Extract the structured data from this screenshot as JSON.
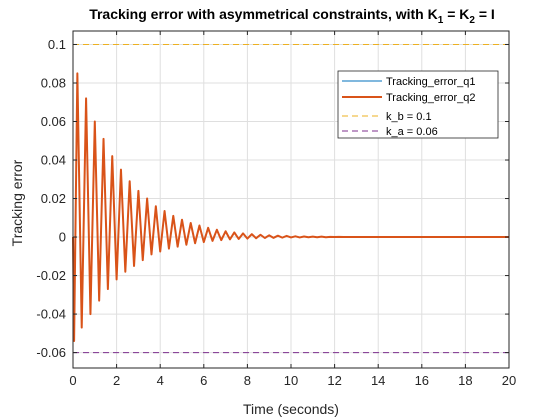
{
  "chart_data": {
    "type": "line",
    "title": "Tracking error with asymmetrical constraints, with K",
    "title_sub1": "1",
    "title_mid": " = K",
    "title_sub2": "2",
    "title_end": " =  I",
    "xlabel": "Time (seconds)",
    "ylabel": "Tracking error",
    "xlim": [
      0,
      20
    ],
    "ylim": [
      -0.068,
      0.107
    ],
    "grid": true,
    "legend_position": "top-right",
    "x_ticks": [
      0,
      2,
      4,
      6,
      8,
      10,
      12,
      14,
      16,
      18,
      20
    ],
    "x_tick_labels": [
      "0",
      "2",
      "4",
      "6",
      "8",
      "10",
      "12",
      "14",
      "16",
      "18",
      "20"
    ],
    "y_ticks": [
      -0.06,
      -0.04,
      -0.02,
      0,
      0.02,
      0.04,
      0.06,
      0.08,
      0.1
    ],
    "y_tick_labels": [
      "-0.06",
      "-0.04",
      "-0.02",
      "0",
      "0.02",
      "0.04",
      "0.06",
      "0.08",
      "0.1"
    ],
    "series": [
      {
        "name": "Tracking_error_q1",
        "color": "#0072BD",
        "style": "solid",
        "x": [
          0,
          0.05,
          0.2,
          0.4,
          0.6,
          0.8,
          1.0,
          1.2,
          1.4,
          1.6,
          1.8,
          2.0,
          2.2,
          2.4,
          2.6,
          2.8,
          3.0,
          3.2,
          3.4,
          3.6,
          3.8,
          4.0,
          4.2,
          4.4,
          4.6,
          4.8,
          5.0,
          5.2,
          5.4,
          5.6,
          5.8,
          6.0,
          6.2,
          6.4,
          6.6,
          6.8,
          7.0,
          7.2,
          7.4,
          7.6,
          7.8,
          8.0,
          8.2,
          8.4,
          8.6,
          8.8,
          9.0,
          9.2,
          9.4,
          9.6,
          9.8,
          10.0,
          10.2,
          10.4,
          10.6,
          10.8,
          11.0,
          11.2,
          11.4,
          11.6,
          11.8,
          12.0,
          12.2,
          12.4,
          12.6,
          12.8,
          13.0,
          13.2,
          13.4,
          13.6,
          13.8,
          14.0,
          16.0,
          18.0,
          20.0
        ],
        "y": [
          0,
          -0.054,
          0.085,
          -0.047,
          0.072,
          -0.04,
          0.06,
          -0.033,
          0.051,
          -0.027,
          0.042,
          -0.022,
          0.035,
          -0.018,
          0.029,
          -0.015,
          0.024,
          -0.012,
          0.02,
          -0.009,
          0.016,
          -0.0075,
          0.0135,
          -0.006,
          0.011,
          -0.005,
          0.009,
          -0.004,
          0.0073,
          -0.0032,
          0.006,
          -0.0026,
          0.0048,
          -0.002,
          0.0038,
          -0.0016,
          0.003,
          -0.0012,
          0.0024,
          -0.001,
          0.0019,
          -0.0008,
          0.0015,
          -0.0006,
          0.0012,
          -0.0005,
          0.0009,
          -0.0004,
          0.0007,
          -0.0003,
          0.0006,
          -0.0002,
          0.0004,
          -0.0002,
          0.0003,
          -0.0001,
          0.0002,
          -0.0001,
          0.0002,
          -0.0001,
          0.0001,
          0,
          0.0001,
          0,
          0,
          0,
          0,
          0,
          0,
          0,
          0,
          0,
          0,
          0,
          0
        ]
      },
      {
        "name": "Tracking_error_q2",
        "color": "#D95319",
        "style": "solid",
        "x": [
          0,
          0.05,
          0.2,
          0.4,
          0.6,
          0.8,
          1.0,
          1.2,
          1.4,
          1.6,
          1.8,
          2.0,
          2.2,
          2.4,
          2.6,
          2.8,
          3.0,
          3.2,
          3.4,
          3.6,
          3.8,
          4.0,
          4.2,
          4.4,
          4.6,
          4.8,
          5.0,
          5.2,
          5.4,
          5.6,
          5.8,
          6.0,
          6.2,
          6.4,
          6.6,
          6.8,
          7.0,
          7.2,
          7.4,
          7.6,
          7.8,
          8.0,
          8.2,
          8.4,
          8.6,
          8.8,
          9.0,
          9.2,
          9.4,
          9.6,
          9.8,
          10.0,
          10.2,
          10.4,
          10.6,
          10.8,
          11.0,
          11.2,
          11.4,
          11.6,
          11.8,
          12.0,
          12.2,
          12.4,
          12.6,
          12.8,
          13.0,
          13.2,
          13.4,
          13.6,
          13.8,
          14.0,
          16.0,
          18.0,
          20.0
        ],
        "y": [
          0,
          -0.054,
          0.085,
          -0.047,
          0.072,
          -0.04,
          0.06,
          -0.033,
          0.051,
          -0.027,
          0.042,
          -0.022,
          0.035,
          -0.018,
          0.029,
          -0.015,
          0.024,
          -0.012,
          0.02,
          -0.009,
          0.016,
          -0.0075,
          0.0135,
          -0.006,
          0.011,
          -0.005,
          0.009,
          -0.004,
          0.0073,
          -0.0032,
          0.006,
          -0.0026,
          0.0048,
          -0.002,
          0.0038,
          -0.0016,
          0.003,
          -0.0012,
          0.0024,
          -0.001,
          0.0019,
          -0.0008,
          0.0015,
          -0.0006,
          0.0012,
          -0.0005,
          0.0009,
          -0.0004,
          0.0007,
          -0.0003,
          0.0006,
          -0.0002,
          0.0004,
          -0.0002,
          0.0003,
          -0.0001,
          0.0002,
          -0.0001,
          0.0002,
          -0.0001,
          0.0001,
          0,
          0.0001,
          0,
          0,
          0,
          0,
          0,
          0,
          0,
          0,
          0,
          0,
          0,
          0
        ]
      }
    ],
    "constraints": [
      {
        "name": "k_b = 0.1",
        "value": 0.1,
        "color": "#EDB120",
        "style": "dashed"
      },
      {
        "name": "k_a = 0.06",
        "value": -0.06,
        "color": "#7E2F8E",
        "style": "dashed"
      }
    ]
  }
}
